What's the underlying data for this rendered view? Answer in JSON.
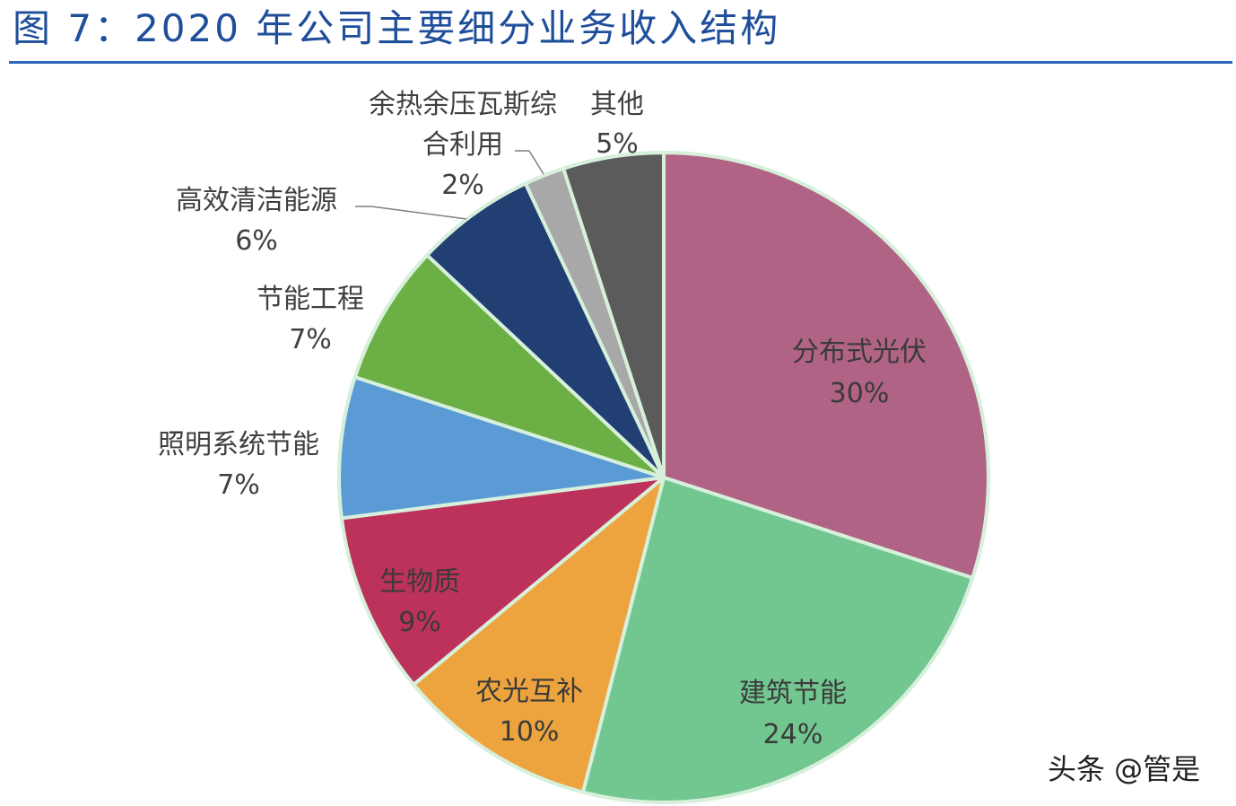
{
  "figure_title": "图 7：2020 年公司主要细分业务收入结构",
  "watermark": "头条 @管是",
  "chart_data": {
    "type": "pie",
    "title": "图 7：2020 年公司主要细分业务收入结构",
    "unit": "%",
    "start_angle_deg": 0,
    "direction": "clockwise",
    "slices": [
      {
        "label": "分布式光伏",
        "value": 30,
        "value_text": "30%",
        "color": "#b06384",
        "label_position": "inside"
      },
      {
        "label": "建筑节能",
        "value": 24,
        "value_text": "24%",
        "color": "#72c68f",
        "label_position": "inside"
      },
      {
        "label": "农光互补",
        "value": 10,
        "value_text": "10%",
        "color": "#eda43e",
        "label_position": "inside"
      },
      {
        "label": "生物质",
        "value": 9,
        "value_text": "9%",
        "color": "#bd325a",
        "label_position": "inside"
      },
      {
        "label": "照明系统节能",
        "value": 7,
        "value_text": "7%",
        "color": "#5a9bd5",
        "label_position": "outside"
      },
      {
        "label": "节能工程",
        "value": 7,
        "value_text": "7%",
        "color": "#6caf45",
        "label_position": "outside"
      },
      {
        "label": "高效清洁能源",
        "value": 6,
        "value_text": "6%",
        "color": "#223f73",
        "label_position": "outside"
      },
      {
        "label": "余热余压瓦斯综合利用",
        "value": 2,
        "value_text": "2%",
        "color": "#a8a8a8",
        "label_position": "outside"
      },
      {
        "label": "其他",
        "value": 5,
        "value_text": "5%",
        "color": "#5b5b5b",
        "label_position": "outside"
      }
    ],
    "legend": "none"
  }
}
